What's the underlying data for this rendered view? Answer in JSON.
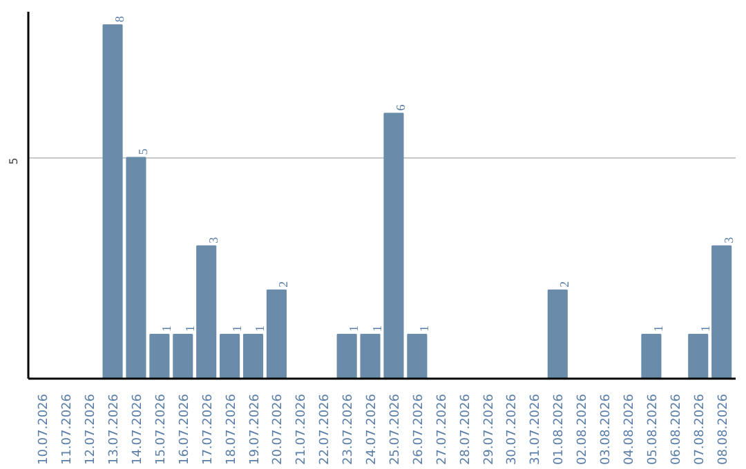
{
  "chart_data": {
    "type": "bar",
    "categories": [
      "10.07.2026",
      "11.07.2026",
      "12.07.2026",
      "13.07.2026",
      "14.07.2026",
      "15.07.2026",
      "16.07.2026",
      "17.07.2026",
      "18.07.2026",
      "19.07.2026",
      "20.07.2026",
      "21.07.2026",
      "22.07.2026",
      "23.07.2026",
      "24.07.2026",
      "25.07.2026",
      "26.07.2026",
      "27.07.2026",
      "28.07.2026",
      "29.07.2026",
      "30.07.2026",
      "31.07.2026",
      "01.08.2026",
      "02.08.2026",
      "03.08.2026",
      "04.08.2026",
      "05.08.2026",
      "06.08.2026",
      "07.08.2026",
      "08.08.2026"
    ],
    "values": [
      0,
      0,
      0,
      8,
      5,
      1,
      1,
      3,
      1,
      1,
      2,
      0,
      0,
      1,
      1,
      6,
      1,
      0,
      0,
      0,
      0,
      0,
      2,
      0,
      0,
      0,
      1,
      0,
      1,
      3
    ],
    "value_labels": [
      null,
      null,
      null,
      "8",
      "5",
      "1",
      "1",
      "3",
      "1",
      "1",
      "2",
      null,
      null,
      "1",
      "1",
      "6",
      "1",
      null,
      null,
      null,
      null,
      null,
      "2",
      null,
      null,
      null,
      "1",
      null,
      "1",
      "3"
    ],
    "color": "#6a8caa",
    "ylim": [
      0,
      8.3
    ],
    "yticks": [
      5
    ],
    "grid": "y"
  }
}
